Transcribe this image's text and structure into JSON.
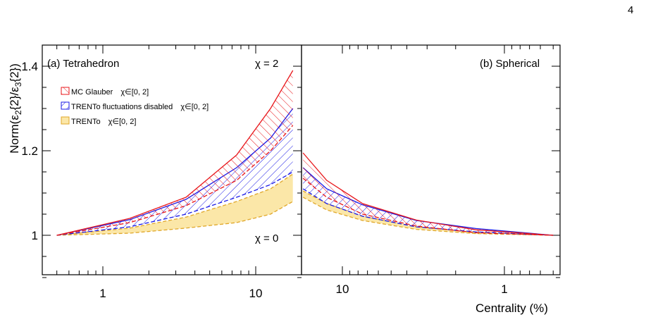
{
  "page_number": "4",
  "chart_data": [
    {
      "type": "area",
      "panel_label": "(a) Tetrahedron",
      "annotations": [
        "χ = 2",
        "χ = 0"
      ],
      "ylabel": "Norm(ε2{2}/ε3{2})",
      "xlabel": "",
      "x_scale": "log",
      "xlim": [
        0.5,
        17
      ],
      "ylim": [
        0.89,
        1.455
      ],
      "y_ticks": [
        {
          "value": 1.0,
          "label": "1"
        },
        {
          "value": 1.2,
          "label": "1.2"
        },
        {
          "value": 1.4,
          "label": "1.4"
        }
      ],
      "x_ticks": [
        {
          "value": 1,
          "label": "1"
        },
        {
          "value": 10,
          "label": "10"
        }
      ],
      "legend": {
        "placement": "top-left",
        "entries": [
          {
            "label": "MC Glauber",
            "range": "χ∈[0, 2]",
            "style": "red-hatch"
          },
          {
            "label": "TRENTo fluctuations disabled",
            "range": "χ∈[0, 2]",
            "style": "blue-hatch"
          },
          {
            "label": "TRENTo",
            "range": "χ∈[0, 2]",
            "style": "yellow-fill"
          }
        ]
      },
      "series": [
        {
          "style": "red",
          "x": [
            0.5,
            1.5,
            3.5,
            7.5,
            12.5,
            17.5
          ],
          "upper": [
            1.0,
            1.04,
            1.09,
            1.19,
            1.3,
            1.39
          ],
          "lower": [
            1.0,
            1.03,
            1.07,
            1.13,
            1.2,
            1.26
          ]
        },
        {
          "style": "blue",
          "x": [
            0.5,
            1.5,
            3.5,
            7.5,
            12.5,
            17.5
          ],
          "upper": [
            1.0,
            1.037,
            1.085,
            1.16,
            1.23,
            1.3
          ],
          "lower": [
            1.0,
            1.02,
            1.05,
            1.09,
            1.12,
            1.15
          ]
        },
        {
          "style": "yellow",
          "x": [
            0.5,
            1.5,
            3.5,
            7.5,
            12.5,
            17.5
          ],
          "upper": [
            1.0,
            1.017,
            1.043,
            1.08,
            1.11,
            1.145
          ],
          "lower": [
            1.0,
            1.005,
            1.017,
            1.03,
            1.05,
            1.08
          ]
        }
      ]
    },
    {
      "type": "area",
      "panel_label": "(b) Spherical",
      "xlabel": "Centrality (%)",
      "x_scale": "log-reversed",
      "xlim": [
        17,
        0.5
      ],
      "ylim": [
        0.89,
        1.455
      ],
      "x_ticks": [
        {
          "value": 10,
          "label": "10"
        },
        {
          "value": 1,
          "label": "1"
        }
      ],
      "series": [
        {
          "style": "red",
          "x": [
            17.5,
            12.5,
            7.5,
            3.5,
            1.5,
            0.5
          ],
          "upper": [
            1.195,
            1.13,
            1.075,
            1.036,
            1.013,
            1.0
          ],
          "lower": [
            1.135,
            1.09,
            1.05,
            1.022,
            1.006,
            1.0
          ]
        },
        {
          "style": "blue",
          "x": [
            17.5,
            12.5,
            7.5,
            3.5,
            1.5,
            0.5
          ],
          "upper": [
            1.16,
            1.11,
            1.072,
            1.035,
            1.016,
            1.0
          ],
          "lower": [
            1.11,
            1.075,
            1.045,
            1.02,
            1.008,
            1.0
          ]
        },
        {
          "style": "yellow",
          "x": [
            17.5,
            12.5,
            7.5,
            3.5,
            1.5,
            0.5
          ],
          "upper": [
            1.105,
            1.075,
            1.045,
            1.02,
            1.007,
            1.0
          ],
          "lower": [
            1.09,
            1.06,
            1.035,
            1.014,
            1.004,
            1.0
          ]
        }
      ]
    }
  ],
  "colors": {
    "red": "#e8171b",
    "blue": "#1a1ae6",
    "yellow_fill": "#fbe7a8",
    "yellow_line": "#e0a72a"
  }
}
